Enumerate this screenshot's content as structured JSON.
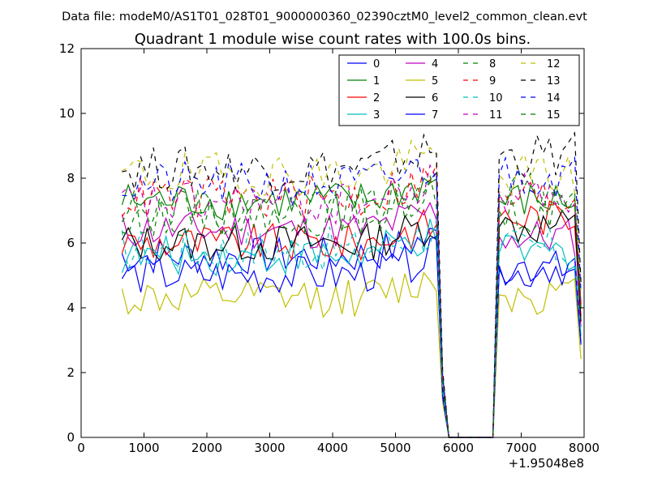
{
  "figure": {
    "suptitle": "Data file: modeM0/AS1T01_028T01_9000000360_02390cztM0_level2_common_clean.evt",
    "title": "Quadrant 1 module wise count rates with 100.0s bins.",
    "offset_label": "+1.95048e8"
  },
  "chart_data": {
    "type": "line",
    "title": "Quadrant 1 module wise count rates with 100.0s bins.",
    "xlabel": "",
    "ylabel": "",
    "x_offset": 195048000,
    "xlim": [
      0,
      8000
    ],
    "ylim": [
      0,
      12
    ],
    "x_ticks": [
      0,
      1000,
      2000,
      3000,
      4000,
      5000,
      6000,
      7000,
      8000
    ],
    "y_ticks": [
      0,
      2,
      4,
      6,
      8,
      10,
      12
    ],
    "grid": false,
    "legend": {
      "placement": "top-right",
      "columns": 4
    },
    "series": [
      {
        "name": "0",
        "color": "#0000ff",
        "dash": "solid",
        "base": 5.6,
        "wobble": 0.3,
        "tail": 5.2
      },
      {
        "name": "1",
        "color": "#008000",
        "dash": "solid",
        "base": 7.3,
        "wobble": 0.3,
        "tail": 7.3
      },
      {
        "name": "2",
        "color": "#ff0000",
        "dash": "solid",
        "base": 6.0,
        "wobble": 0.3,
        "tail": 6.8
      },
      {
        "name": "3",
        "color": "#00bfbf",
        "dash": "solid",
        "base": 5.6,
        "wobble": 0.3,
        "tail": 5.7
      },
      {
        "name": "4",
        "color": "#bf00bf",
        "dash": "solid",
        "base": 6.4,
        "wobble": 0.3,
        "tail": 6.2
      },
      {
        "name": "5",
        "color": "#bfbf00",
        "dash": "solid",
        "base": 4.3,
        "wobble": 0.3,
        "tail": 4.4
      },
      {
        "name": "6",
        "color": "#000000",
        "dash": "solid",
        "base": 6.0,
        "wobble": 0.3,
        "tail": 6.5
      },
      {
        "name": "7",
        "color": "#0000ff",
        "dash": "solid",
        "base": 5.0,
        "wobble": 0.3,
        "tail": 5.3
      },
      {
        "name": "8",
        "color": "#008000",
        "dash": "dashed",
        "base": 7.0,
        "wobble": 0.35,
        "tail": 7.5
      },
      {
        "name": "9",
        "color": "#ff0000",
        "dash": "dashed",
        "base": 7.4,
        "wobble": 0.35,
        "tail": 7.4
      },
      {
        "name": "10",
        "color": "#00bfbf",
        "dash": "dashed",
        "base": 5.8,
        "wobble": 0.35,
        "tail": 5.8
      },
      {
        "name": "11",
        "color": "#bf00bf",
        "dash": "dashed",
        "base": 7.2,
        "wobble": 0.35,
        "tail": 7.6
      },
      {
        "name": "12",
        "color": "#bfbf00",
        "dash": "dashed",
        "base": 8.1,
        "wobble": 0.35,
        "tail": 8.1
      },
      {
        "name": "13",
        "color": "#000000",
        "dash": "dashed",
        "base": 8.3,
        "wobble": 0.35,
        "tail": 8.7
      },
      {
        "name": "14",
        "color": "#0000ff",
        "dash": "dashed",
        "base": 7.8,
        "wobble": 0.35,
        "tail": 8.1
      },
      {
        "name": "15",
        "color": "#008000",
        "dash": "dashed",
        "base": 6.9,
        "wobble": 0.35,
        "tail": 7.0
      }
    ],
    "time_bins": {
      "start": 650,
      "step": 100,
      "active_until": 5650,
      "gap_start": 5850,
      "gap_end": 6550,
      "resume": 6750,
      "end": 7950
    }
  }
}
